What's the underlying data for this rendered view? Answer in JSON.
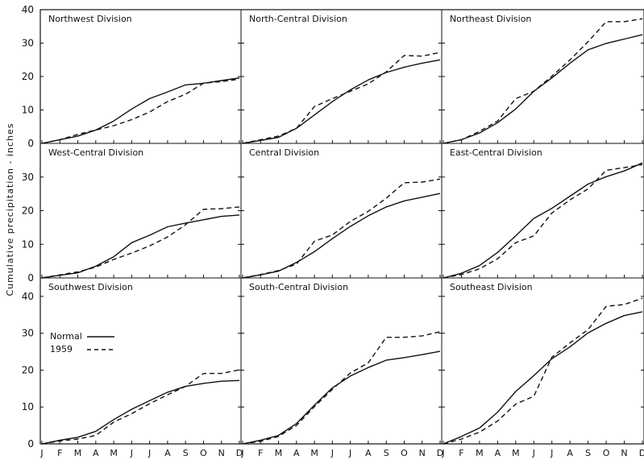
{
  "chart_data": {
    "type": "line",
    "ylabel": "Cumulative precipitation - inches",
    "x": [
      "J",
      "F",
      "M",
      "A",
      "M",
      "J",
      "J",
      "A",
      "S",
      "O",
      "N",
      "D"
    ],
    "legend": {
      "placement": "lower-left of Southwest Division panel",
      "entries": [
        "Normal",
        "1959"
      ]
    },
    "rows": [
      {
        "ylim": [
          0,
          40
        ],
        "yticks": [
          "0",
          "10",
          "20",
          "30",
          "40"
        ]
      },
      {
        "ylim": [
          0,
          40
        ],
        "yticks": [
          "0",
          "10",
          "20",
          "30"
        ]
      },
      {
        "ylim": [
          0,
          45
        ],
        "yticks": [
          "0",
          "10",
          "20",
          "30",
          "40"
        ]
      }
    ],
    "panels": [
      {
        "title": "Northwest Division",
        "series": [
          {
            "name": "Normal",
            "values": [
              0,
              1.1,
              2.2,
              4,
              6.7,
              10.3,
              13.4,
              15.4,
              17.5,
              18,
              18.8,
              19.6
            ]
          },
          {
            "name": "1959",
            "values": [
              0,
              1.1,
              2.7,
              4,
              5.3,
              7.1,
              9.4,
              12.5,
              14.7,
              18,
              18.5,
              19.2
            ]
          }
        ]
      },
      {
        "title": "North-Central Division",
        "series": [
          {
            "name": "Normal",
            "values": [
              0,
              0.9,
              1.8,
              4.5,
              8.5,
              12.5,
              16,
              19,
              21.2,
              22.8,
              24,
              25
            ]
          },
          {
            "name": "1959",
            "values": [
              0,
              1.1,
              2.2,
              4.5,
              11,
              13.4,
              15.6,
              17.8,
              21.4,
              26.3,
              26.1,
              27.2
            ]
          }
        ]
      },
      {
        "title": "Northeast Division",
        "series": [
          {
            "name": "Normal",
            "values": [
              0,
              1.1,
              3.1,
              6.2,
              10.3,
              15.6,
              19.6,
              24,
              28,
              29.9,
              31.2,
              32.5
            ]
          },
          {
            "name": "1959",
            "values": [
              0,
              1.1,
              3.6,
              6.7,
              13.4,
              15.6,
              20.1,
              25,
              30.4,
              36.4,
              36.4,
              37.3
            ]
          }
        ]
      },
      {
        "title": "West-Central Division",
        "series": [
          {
            "name": "Normal",
            "values": [
              0,
              0.8,
              1.5,
              3.5,
              6.3,
              10.5,
              12.7,
              15.2,
              16.3,
              17.3,
              18.3,
              18.7
            ]
          },
          {
            "name": "1959",
            "values": [
              0,
              0.9,
              1.8,
              3.2,
              5.5,
              7.4,
              9.5,
              12.2,
              15.8,
              20.4,
              20.6,
              21.1
            ]
          }
        ]
      },
      {
        "title": "Central Division",
        "series": [
          {
            "name": "Normal",
            "values": [
              0,
              0.9,
              2,
              4.6,
              7.8,
              11.7,
              15.3,
              18.5,
              21.1,
              22.9,
              24,
              25.1
            ]
          },
          {
            "name": "1959",
            "values": [
              0,
              1,
              2.2,
              4.1,
              10.9,
              12.8,
              16.8,
              19.8,
              23.7,
              28.3,
              28.5,
              29.4
            ]
          }
        ]
      },
      {
        "title": "East-Central Division",
        "series": [
          {
            "name": "Normal",
            "values": [
              0,
              1.4,
              3.7,
              7.6,
              12.5,
              17.7,
              20.7,
              24.3,
              27.9,
              30.1,
              31.8,
              34.2
            ]
          },
          {
            "name": "1959",
            "values": [
              0,
              1,
              2.7,
              5.7,
              10.5,
              12.5,
              19.3,
              23.2,
              26.5,
              32,
              32.8,
              33.7
            ]
          }
        ]
      },
      {
        "title": "Southwest Division",
        "series": [
          {
            "name": "Normal",
            "values": [
              0,
              1,
              1.8,
              3.4,
              6.6,
              9.4,
              11.7,
              14,
              15.6,
              16.4,
              17,
              17.2
            ]
          },
          {
            "name": "1959",
            "values": [
              0,
              0.8,
              1.3,
              2.3,
              5.9,
              8.2,
              10.9,
              13.3,
              15.6,
              19.1,
              19.1,
              20.1
            ]
          }
        ]
      },
      {
        "title": "South-Central Division",
        "series": [
          {
            "name": "Normal",
            "values": [
              0,
              1,
              2.3,
              5.5,
              10.5,
              15.2,
              18.4,
              20.7,
              22.7,
              23.4,
              24.2,
              25.1
            ]
          },
          {
            "name": "1959",
            "values": [
              0,
              0.7,
              2,
              5,
              10.1,
              14.8,
              19.2,
              22,
              28.9,
              28.9,
              29.3,
              30.4
            ]
          }
        ]
      },
      {
        "title": "Southeast Division",
        "series": [
          {
            "name": "Normal",
            "values": [
              0,
              2,
              4.3,
              8.6,
              14.2,
              18.5,
              23.1,
              26.3,
              30.1,
              32.7,
              34.8,
              35.8
            ]
          },
          {
            "name": "1959",
            "values": [
              0,
              1.3,
              3.2,
              6.2,
              10.8,
              12.9,
              23.5,
              27.4,
              31,
              37.3,
              37.8,
              39.5
            ]
          }
        ]
      }
    ]
  }
}
